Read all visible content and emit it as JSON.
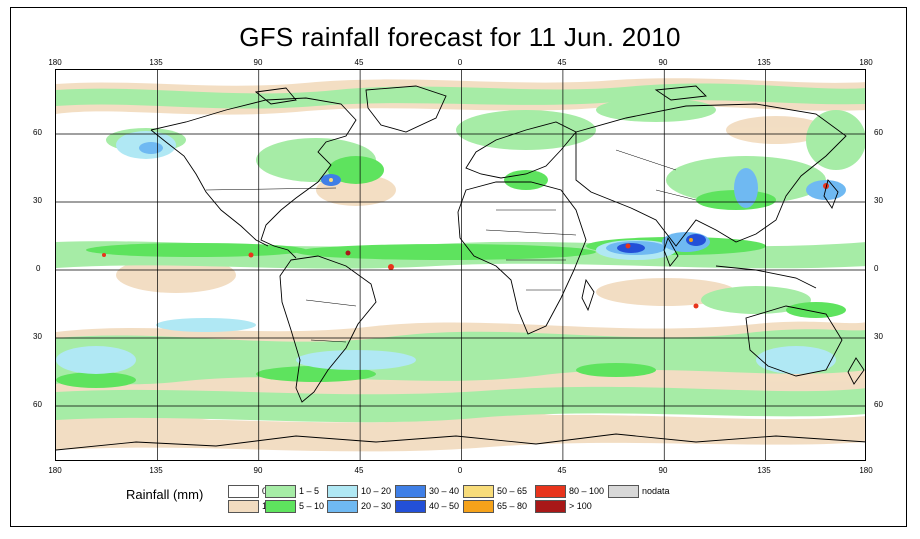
{
  "title": "GFS rainfall forecast for 11 Jun. 2010",
  "longitude_ticks": [
    "180",
    "135",
    "90",
    "45",
    "0",
    "45",
    "90",
    "135",
    "180"
  ],
  "latitude_ticks": [
    "60",
    "30",
    "0",
    "30",
    "60"
  ],
  "legend": {
    "title": "Rainfall (mm)",
    "items": [
      {
        "label": "0",
        "color": "#ffffff"
      },
      {
        "label": "1",
        "color": "#f2dcc0"
      },
      {
        "label": "1 – 5",
        "color": "#a6eca6"
      },
      {
        "label": "5 – 10",
        "color": "#5ee35e"
      },
      {
        "label": "10 – 20",
        "color": "#b0e8f4"
      },
      {
        "label": "20 – 30",
        "color": "#6fb9f2"
      },
      {
        "label": "30 – 40",
        "color": "#3f7fe6"
      },
      {
        "label": "40 – 50",
        "color": "#2350d8"
      },
      {
        "label": "50 – 65",
        "color": "#f8dc7a"
      },
      {
        "label": "65 – 80",
        "color": "#f5a21a"
      },
      {
        "label": "80 – 100",
        "color": "#e8341c"
      },
      {
        "label": "> 100",
        "color": "#a81818"
      },
      {
        "label": "nodata",
        "color": "#d8d8d8"
      }
    ]
  }
}
